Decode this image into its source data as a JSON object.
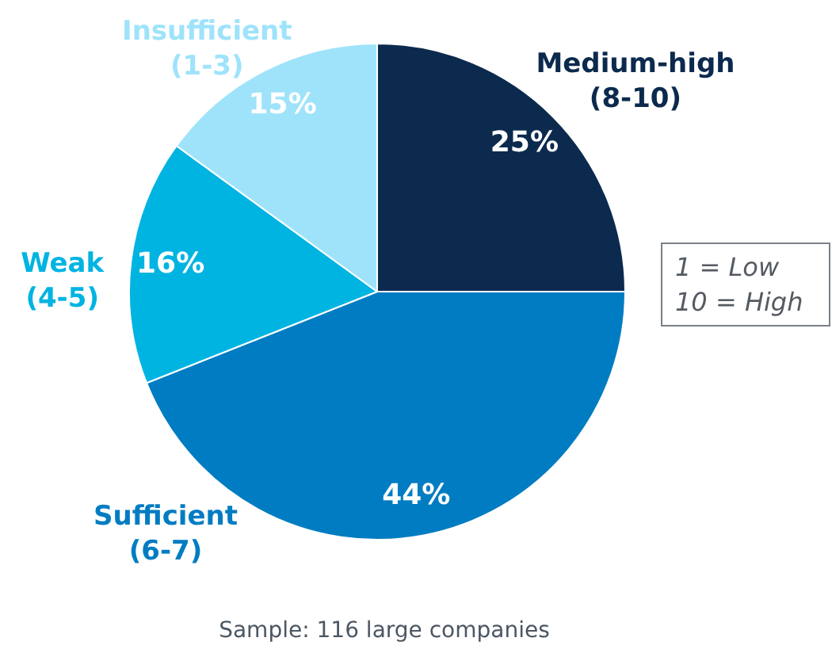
{
  "chart_data": {
    "type": "pie",
    "categories": [
      "Medium-high\n(8-10)",
      "Sufficient\n(6-7)",
      "Weak\n(4-5)",
      "Insufficient\n(1-3)"
    ],
    "values": [
      25,
      44,
      16,
      15
    ],
    "colors": [
      "#0b2a4d",
      "#007cc2",
      "#00b4e2",
      "#9fe3fb"
    ],
    "value_labels": [
      "25%",
      "44%",
      "16%",
      "15%"
    ],
    "annotations": [
      "1 = Low\n10 = High",
      "Sample: 116 large companies"
    ]
  }
}
